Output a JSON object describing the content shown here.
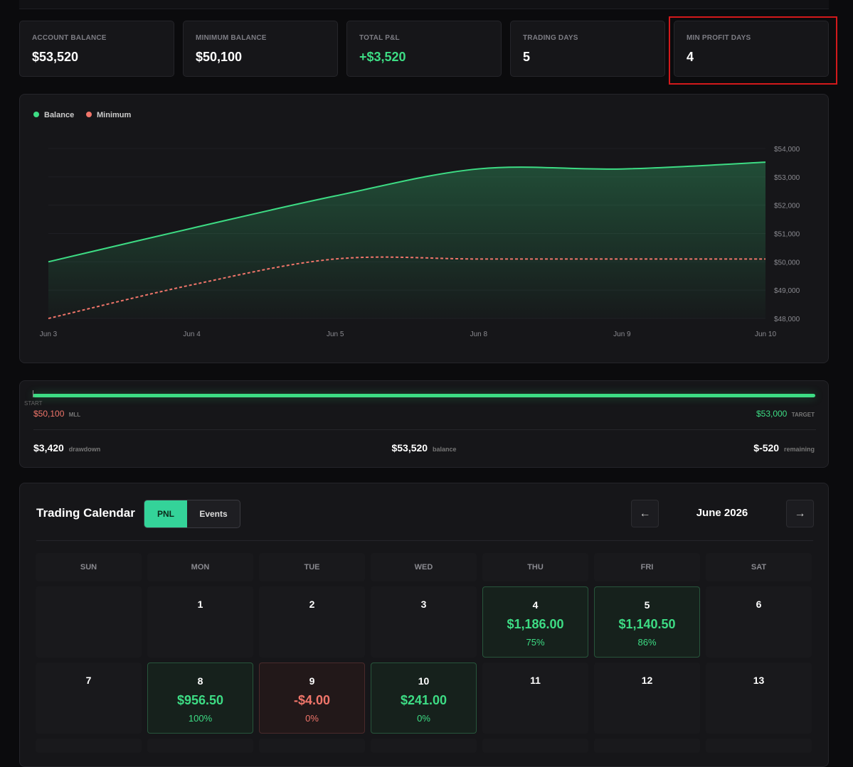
{
  "stats": [
    {
      "label": "ACCOUNT BALANCE",
      "value": "$53,520"
    },
    {
      "label": "MINIMUM BALANCE",
      "value": "$50,100"
    },
    {
      "label": "TOTAL P&L",
      "value": "+$3,520",
      "color": "#3ddc84"
    },
    {
      "label": "TRADING DAYS",
      "value": "5"
    },
    {
      "label": "MIN PROFIT DAYS",
      "value": "4"
    }
  ],
  "chart_data": {
    "type": "line",
    "categories": [
      "Jun 3",
      "Jun 4",
      "Jun 5",
      "Jun 8",
      "Jun 9",
      "Jun 10"
    ],
    "series": [
      {
        "name": "Balance",
        "color": "#3ddc84",
        "values": [
          50000,
          51186,
          52326.5,
          53283,
          53279,
          53520
        ]
      },
      {
        "name": "Minimum",
        "color": "#f0756a",
        "values": [
          48000,
          49186,
          50100,
          50100,
          50100,
          50100
        ]
      }
    ],
    "ylim": [
      48000,
      54000
    ],
    "yticks": [
      {
        "value": 48000,
        "label": "$48,000"
      },
      {
        "value": 49000,
        "label": "$49,000"
      },
      {
        "value": 50000,
        "label": "$50,000"
      },
      {
        "value": 51000,
        "label": "$51,000"
      },
      {
        "value": 52000,
        "label": "$52,000"
      },
      {
        "value": 53000,
        "label": "$53,000"
      },
      {
        "value": 54000,
        "label": "$54,000"
      }
    ],
    "grid": true,
    "legend": "top-left"
  },
  "progress": {
    "start": "START",
    "mll_value": "$50,100",
    "mll_label": "MLL",
    "target_value": "$53,000",
    "target_label": "TARGET",
    "drawdown_value": "$3,420",
    "drawdown_label": "drawdown",
    "balance_value": "$53,520",
    "balance_label": "balance",
    "remaining_value": "$-520",
    "remaining_label": "remaining"
  },
  "calendar": {
    "title": "Trading Calendar",
    "tabs": [
      "PNL",
      "Events"
    ],
    "prev": "←",
    "month": "June 2026",
    "next": "→",
    "weekdays": [
      "SUN",
      "MON",
      "TUE",
      "WED",
      "THU",
      "FRI",
      "SAT"
    ],
    "weeks": [
      [
        null,
        {
          "day": "1"
        },
        {
          "day": "2"
        },
        {
          "day": "3"
        },
        {
          "day": "4",
          "pnl": "$1,186.00",
          "pct": "75%"
        },
        {
          "day": "5",
          "pnl": "$1,140.50",
          "pct": "86%"
        },
        {
          "day": "6"
        }
      ],
      [
        {
          "day": "7"
        },
        {
          "day": "8",
          "pnl": "$956.50",
          "pct": "100%"
        },
        {
          "day": "9",
          "pnl": "-$4.00",
          "pct": "0%"
        },
        {
          "day": "10",
          "pnl": "$241.00",
          "pct": "0%"
        },
        {
          "day": "11"
        },
        {
          "day": "12"
        },
        {
          "day": "13"
        }
      ]
    ]
  }
}
